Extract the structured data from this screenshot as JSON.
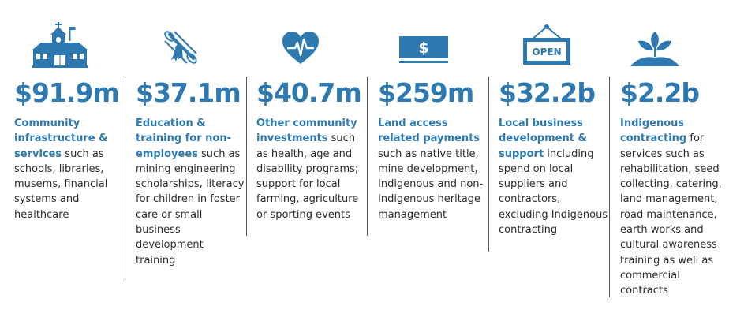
{
  "colors": {
    "accent": "#2e79b0",
    "text": "#2b2b2b",
    "divider": "#555555"
  },
  "items": [
    {
      "icon": "school-building-icon",
      "amount": "$91.9m",
      "bold": "Community infrastructure & services",
      "normal": " such as schools, libraries, musems, financial systems and healthcare"
    },
    {
      "icon": "diploma-scroll-icon",
      "amount": "$37.1m",
      "bold": "Education & training for non-employees",
      "normal": " such as mining engineering scholarships, literacy for children in foster care or small business development training"
    },
    {
      "icon": "heartbeat-icon",
      "amount": "$40.7m",
      "bold": "Other community investments",
      "normal": " such as health, age and disability programs; support for local farming, agriculture or sporting events"
    },
    {
      "icon": "dollar-bill-icon",
      "amount": "$259m",
      "bold": "Land access related payments",
      "normal": " such as native title, mine development, Indigenous and non-Indigenous heritage management"
    },
    {
      "icon": "open-sign-icon",
      "amount": "$32.2b",
      "bold": "Local business development & support",
      "normal": " including spend on local suppliers and contractors, excluding Indigenous contracting",
      "sign_text": "OPEN"
    },
    {
      "icon": "sprouting-plant-icon",
      "amount": "$2.2b",
      "bold": "Indigenous contracting",
      "normal": " for services such as rehabilitation, seed collecting, catering, land management, road maintenance, earth works and cultural awareness training as well as commercial contracts"
    }
  ]
}
